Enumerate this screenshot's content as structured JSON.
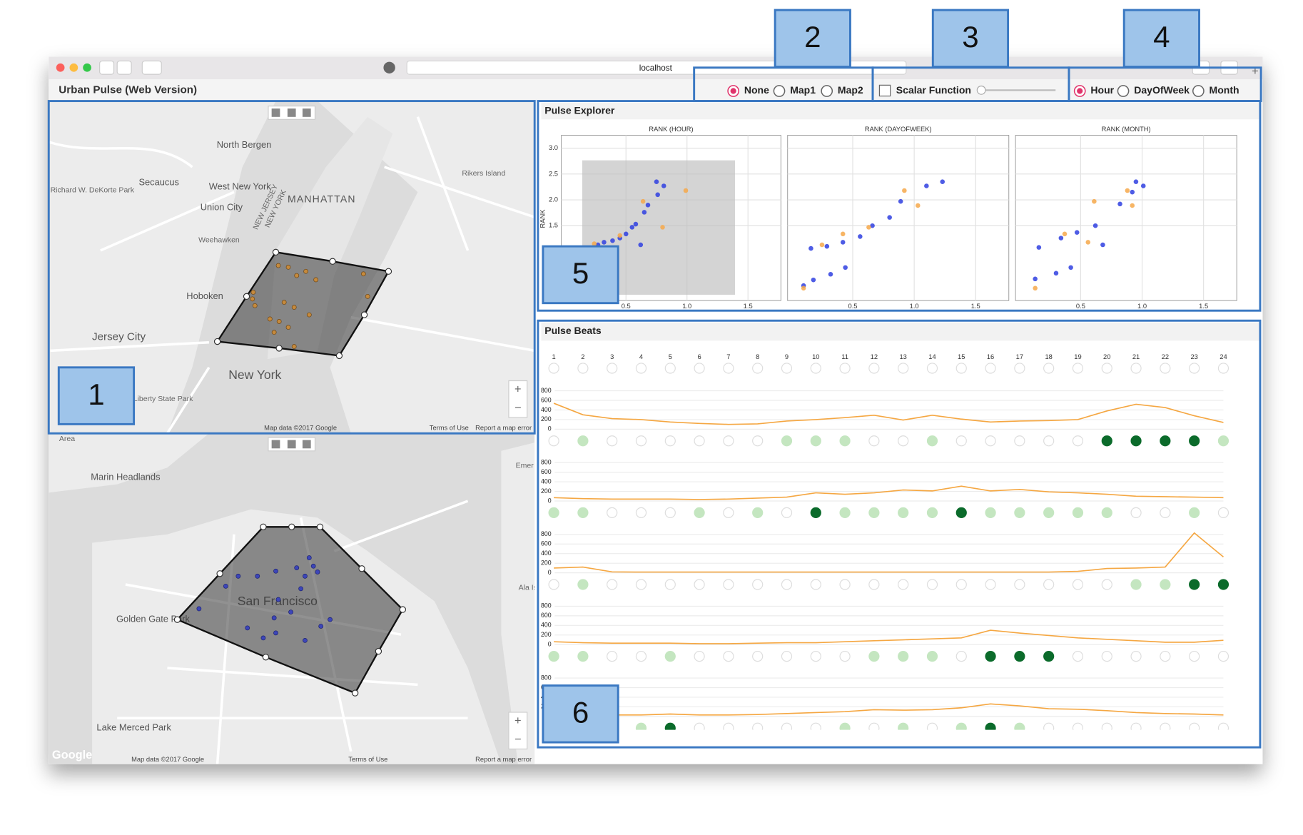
{
  "browser": {
    "url": "localhost"
  },
  "app": {
    "title": "Urban Pulse (Web Version)"
  },
  "controls": {
    "map_options": [
      "None",
      "Map1",
      "Map2"
    ],
    "map_selected": 0,
    "scalar": "Scalar Function",
    "time_options": [
      "Hour",
      "DayOfWeek",
      "Month"
    ],
    "time_selected": 0
  },
  "annotations": [
    "1",
    "2",
    "3",
    "4",
    "5",
    "6"
  ],
  "map1": {
    "labels": [
      "North Bergen",
      "Secaucus",
      "West New York",
      "Union City",
      "MANHATTAN",
      "Weehawken",
      "Hoboken",
      "Jersey City",
      "New York",
      "Liberty State Park",
      "Rikers Island",
      "NEW JERSEY",
      "NEW YORK",
      "Richard W. DeKorte Park"
    ],
    "credit": "Map data ©2017 Google",
    "terms": "Terms of Use",
    "report": "Report a map error",
    "zoom_in": "+",
    "zoom_out": "−"
  },
  "map2": {
    "labels": [
      "San Francisco",
      "Marin Headlands",
      "Golden Gate Park",
      "Lake Merced Park",
      "Emer",
      "Ala Is",
      "Area"
    ],
    "logo": "Google",
    "credit": "Map data ©2017 Google",
    "terms": "Terms of Use",
    "report": "Report a map error",
    "zoom_in": "+",
    "zoom_out": "−"
  },
  "explorer": {
    "title": "Pulse Explorer"
  },
  "chart_data": [
    {
      "type": "scatter",
      "title": "RANK (HOUR)",
      "y_label": "RANK",
      "xlim": [
        -0.03,
        1.77
      ],
      "ylim": [
        0.05,
        3.25
      ],
      "xticks": [
        0.5,
        {
          "value": 1,
          "label": "1.0"
        },
        1.5
      ],
      "yticks": [
        1.5,
        {
          "value": 2,
          "label": "2.0"
        },
        2.5,
        {
          "value": 3,
          "label": "3.0"
        }
      ],
      "show_ytick_labels": true,
      "series": [
        {
          "color": "#2f3fe0",
          "x": [
            0.75,
            0.81,
            0.76,
            0.68,
            0.65,
            0.58,
            0.55,
            0.5,
            0.45,
            0.39,
            0.32,
            0.27,
            0.62
          ],
          "values": [
            2.35,
            2.27,
            2.1,
            1.9,
            1.76,
            1.53,
            1.47,
            1.34,
            1.26,
            1.21,
            1.18,
            1.13,
            1.13
          ]
        },
        {
          "color": "#f6a84a",
          "x": [
            0.99,
            0.64,
            0.8,
            0.45,
            0.24
          ],
          "values": [
            2.18,
            1.97,
            1.47,
            1.31,
            1.15
          ]
        }
      ]
    },
    {
      "type": "scatter",
      "title": "RANK (DAYOFWEEK)",
      "xlim": [
        -0.03,
        1.77
      ],
      "ylim": [
        0.05,
        3.25
      ],
      "xticks": [
        0.5,
        {
          "value": 1,
          "label": "1.0"
        },
        1.5
      ],
      "yticks": [
        1.5,
        2,
        2.5,
        3
      ],
      "show_ytick_labels": false,
      "series": [
        {
          "color": "#2f3fe0",
          "x": [
            1.23,
            1.1,
            0.89,
            0.8,
            0.66,
            0.56,
            0.42,
            0.29,
            0.16,
            0.44,
            0.32,
            0.18,
            0.1
          ],
          "values": [
            2.35,
            2.27,
            1.97,
            1.66,
            1.5,
            1.29,
            1.18,
            1.1,
            1.06,
            0.69,
            0.56,
            0.45,
            0.34
          ]
        },
        {
          "color": "#f6a84a",
          "x": [
            0.92,
            1.03,
            0.63,
            0.42,
            0.25,
            0.1
          ],
          "values": [
            2.18,
            1.89,
            1.47,
            1.34,
            1.13,
            0.29
          ]
        }
      ]
    },
    {
      "type": "scatter",
      "title": "RANK (MONTH)",
      "xlim": [
        -0.03,
        1.77
      ],
      "ylim": [
        0.05,
        3.25
      ],
      "xticks": [
        0.5,
        {
          "value": 1,
          "label": "1.0"
        },
        1.5
      ],
      "yticks": [
        1.5,
        2,
        2.5,
        3
      ],
      "show_ytick_labels": false,
      "series": [
        {
          "color": "#2f3fe0",
          "x": [
            0.95,
            1.01,
            0.92,
            0.82,
            0.62,
            0.47,
            0.34,
            0.16,
            0.68,
            0.42,
            0.3,
            0.13
          ],
          "values": [
            2.35,
            2.27,
            2.15,
            1.92,
            1.5,
            1.37,
            1.26,
            1.08,
            1.13,
            0.69,
            0.58,
            0.47
          ]
        },
        {
          "color": "#f6a84a",
          "x": [
            0.88,
            0.61,
            0.92,
            0.56,
            0.37,
            0.13
          ],
          "values": [
            2.18,
            1.97,
            1.89,
            1.18,
            1.34,
            0.29
          ]
        }
      ]
    },
    {
      "type": "beats",
      "title": "Pulse Beats",
      "categories": [
        "1",
        "2",
        "3",
        "4",
        "5",
        "6",
        "7",
        "8",
        "9",
        "10",
        "11",
        "12",
        "13",
        "14",
        "15",
        "16",
        "17",
        "18",
        "19",
        "20",
        "21",
        "22",
        "23",
        "24"
      ],
      "ylim": [
        0,
        850
      ],
      "yticks": [
        0,
        200,
        400,
        600,
        800
      ],
      "series": [
        {
          "color": "#f5a742",
          "values": [
            540,
            300,
            220,
            200,
            150,
            120,
            100,
            110,
            170,
            200,
            240,
            290,
            190,
            290,
            210,
            150,
            170,
            180,
            200,
            380,
            520,
            450,
            280,
            140
          ]
        },
        {
          "color": "#f5a742",
          "values": [
            70,
            50,
            40,
            40,
            40,
            30,
            40,
            60,
            80,
            170,
            140,
            170,
            230,
            210,
            310,
            210,
            240,
            190,
            170,
            140,
            100,
            90,
            80,
            70
          ]
        },
        {
          "color": "#f5a742",
          "values": [
            100,
            120,
            20,
            15,
            15,
            15,
            15,
            15,
            15,
            15,
            15,
            15,
            15,
            15,
            15,
            15,
            15,
            15,
            30,
            90,
            100,
            120,
            830,
            330
          ]
        },
        {
          "color": "#f5a742",
          "values": [
            60,
            40,
            30,
            30,
            30,
            20,
            20,
            30,
            40,
            40,
            60,
            80,
            100,
            120,
            140,
            300,
            240,
            190,
            140,
            110,
            80,
            50,
            50,
            90
          ]
        },
        {
          "color": "#f5a742",
          "values": [
            30,
            30,
            30,
            30,
            50,
            30,
            30,
            40,
            60,
            80,
            100,
            140,
            130,
            140,
            180,
            260,
            220,
            160,
            150,
            120,
            80,
            60,
            50,
            30
          ]
        }
      ],
      "beat_levels": [
        [
          0,
          1,
          0,
          0,
          0,
          0,
          0,
          0,
          1,
          1,
          1,
          0,
          0,
          1,
          0,
          0,
          0,
          0,
          0,
          3,
          3,
          3,
          3,
          1
        ],
        [
          1,
          1,
          0,
          0,
          0,
          1,
          0,
          1,
          0,
          3,
          1,
          1,
          1,
          1,
          3,
          1,
          1,
          1,
          1,
          1,
          0,
          0,
          1,
          0
        ],
        [
          0,
          1,
          0,
          0,
          0,
          0,
          0,
          0,
          0,
          0,
          0,
          0,
          0,
          0,
          0,
          0,
          0,
          0,
          0,
          0,
          1,
          1,
          3,
          3
        ],
        [
          1,
          1,
          0,
          0,
          1,
          0,
          0,
          0,
          0,
          0,
          0,
          1,
          1,
          1,
          0,
          3,
          3,
          3,
          0,
          0,
          0,
          0,
          0,
          0
        ],
        [
          0,
          0,
          0,
          1,
          3,
          0,
          0,
          0,
          0,
          0,
          1,
          0,
          1,
          0,
          1,
          3,
          1,
          0,
          0,
          0,
          0,
          0,
          0,
          0
        ]
      ],
      "level_colors": [
        "#ffffff",
        "#c4e6c0",
        "#5fb36a",
        "#0b6b2b"
      ]
    }
  ]
}
